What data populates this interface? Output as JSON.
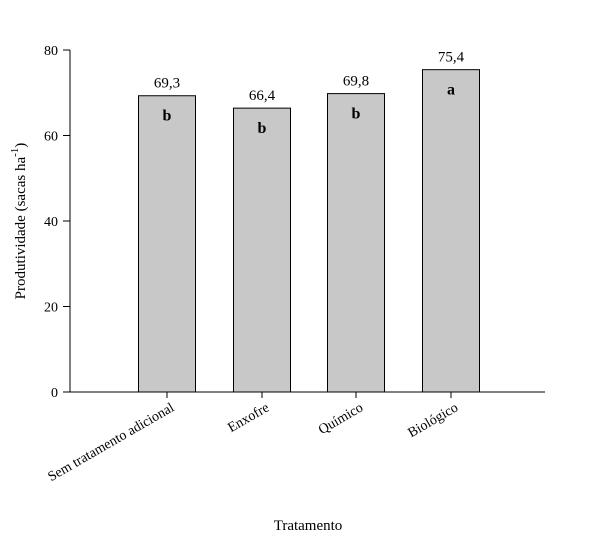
{
  "chart_data": {
    "type": "bar",
    "categories": [
      "Sem tratamento adicional",
      "Enxofre",
      "Químico",
      "Biológico"
    ],
    "values": [
      69.3,
      66.4,
      69.8,
      75.4
    ],
    "value_labels": [
      "69,3",
      "66,4",
      "69,8",
      "75,4"
    ],
    "significance_letters": [
      "b",
      "b",
      "b",
      "a"
    ],
    "xlabel": "Tratamento",
    "ylabel": "Produtividade (sacas ha",
    "ylabel_superscript": "-1",
    "ylabel_suffix": ")",
    "ylim": [
      0,
      80
    ],
    "yticks": [
      0,
      20,
      40,
      60,
      80
    ],
    "ytick_labels": [
      "0",
      "20",
      "40",
      "60",
      "80"
    ],
    "bar_color": "#c8c8c8",
    "grid": false,
    "legend": "none"
  }
}
